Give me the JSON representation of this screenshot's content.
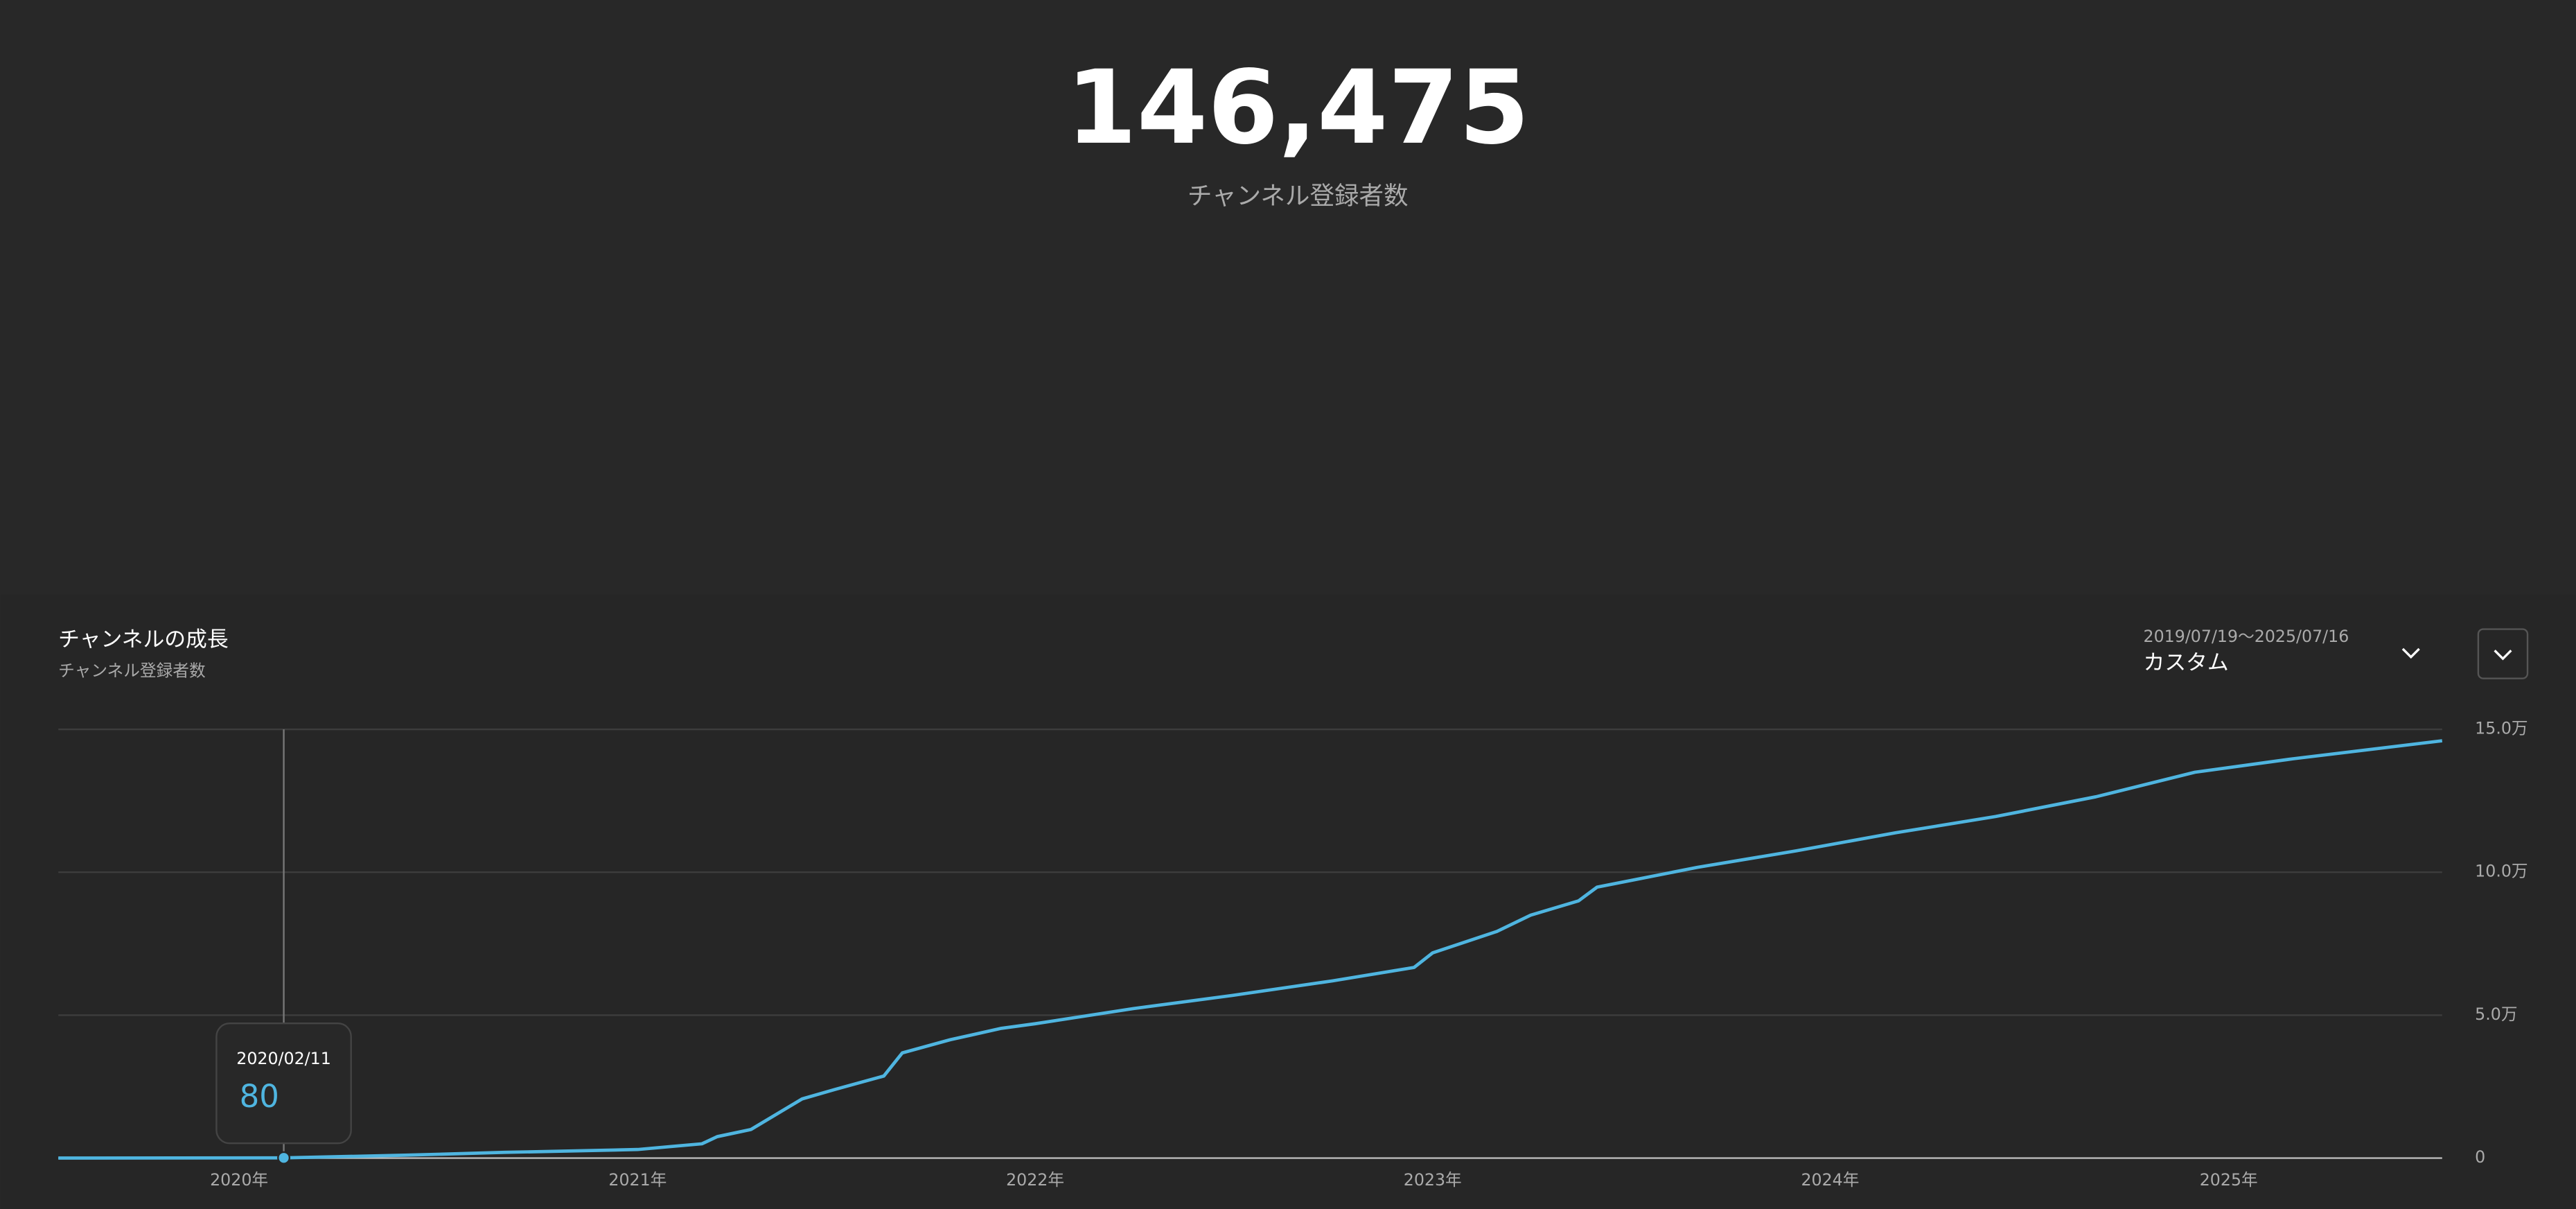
{
  "headline": "146,475",
  "headline_label": "チャンネル登録者数",
  "range_text": "2019/07/19〜2025/07/16",
  "range_preset": "カスタム",
  "chart_data": {
    "type": "line",
    "title": "チャンネルの成長",
    "subtitle": "チャンネル登録者数",
    "color": "#4fb5e0",
    "x": [
      "2019/07/19",
      "2020/02/11",
      "2020/06/01",
      "2020/09/01",
      "2021/01/01",
      "2021/03/01",
      "2021/03/15",
      "2021/04/15",
      "2021/06/01",
      "2021/07/01",
      "2021/08/15",
      "2021/09/01",
      "2021/10/15",
      "2021/12/01",
      "2022/01/01",
      "2022/04/01",
      "2022/07/01",
      "2022/10/01",
      "2022/12/15",
      "2023/01/01",
      "2023/03/01",
      "2023/04/01",
      "2023/05/15",
      "2023/06/01",
      "2023/09/01",
      "2023/12/01",
      "2024/03/01",
      "2024/06/01",
      "2024/09/01",
      "2024/12/01",
      "2025/03/01",
      "2025/07/16"
    ],
    "values": [
      0,
      80,
      1000,
      2000,
      3000,
      5000,
      7500,
      10000,
      20700,
      24000,
      28700,
      36800,
      41400,
      45400,
      47000,
      52300,
      56900,
      62000,
      66700,
      71800,
      79300,
      85000,
      90000,
      94800,
      101700,
      107500,
      113800,
      119500,
      126400,
      135000,
      139700,
      146000
    ],
    "xlim": [
      "2019/07/19",
      "2025/07/16"
    ],
    "xticks": [
      {
        "value": "2020/01/01",
        "label": "2020年"
      },
      {
        "value": "2021/01/01",
        "label": "2021年"
      },
      {
        "value": "2022/01/01",
        "label": "2022年"
      },
      {
        "value": "2023/01/01",
        "label": "2023年"
      },
      {
        "value": "2024/01/01",
        "label": "2024年"
      },
      {
        "value": "2025/01/01",
        "label": "2025年"
      }
    ],
    "ylim": [
      0,
      150000
    ],
    "yticks": [
      0,
      {
        "value": 50000,
        "label": "5.0万"
      },
      {
        "value": 100000,
        "label": "10.0万"
      },
      {
        "value": 150000,
        "label": "15.0万"
      }
    ],
    "grid": true
  }
}
